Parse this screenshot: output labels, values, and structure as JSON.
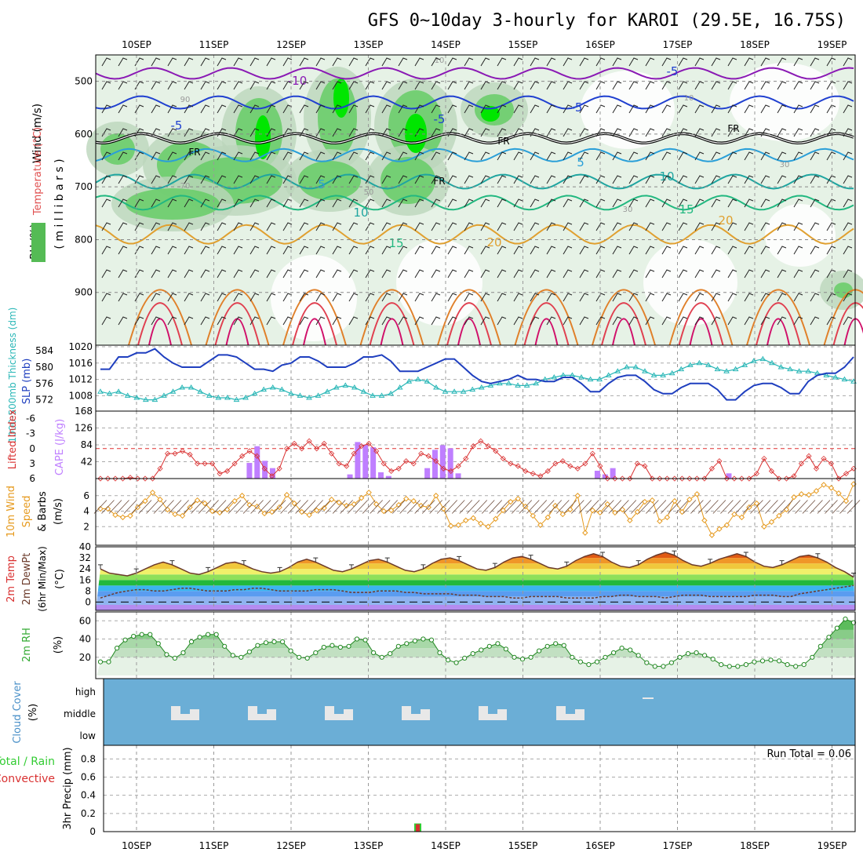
{
  "title": "GFS 0~10day 3-hourly for KAROI (29.5E, 16.75S)",
  "dates": [
    "10SEP",
    "11SEP",
    "12SEP",
    "13SEP",
    "14SEP",
    "15SEP",
    "16SEP",
    "17SEP",
    "18SEP",
    "19SEP"
  ],
  "colors": {
    "rh_green": "#33cc33",
    "rh_light": "#e6f2e6",
    "slp": "#1f3fbf",
    "thickness": "#2ab7b7",
    "cape": "#bf7fff",
    "lifted_index": "#d93030",
    "wind_speed": "#e69a1e",
    "cloud_bg": "#6baed6",
    "cloud_bar": "#e8e8e8",
    "rain": "#d93030",
    "total": "#33cc33"
  },
  "chart_data": [
    {
      "panel": "upper-air",
      "type": "heatmap",
      "ylabel_parts": [
        "RH (%)",
        "Temperature (°C)",
        "Wind (m/s)"
      ],
      "ylabel2": "( m i l l i b a r s )",
      "yticks": [
        500,
        600,
        700,
        800,
        900
      ],
      "ylim": [
        1000,
        450
      ],
      "isotherm_labels": [
        "-10",
        "-5",
        "-5",
        "-5",
        "-5",
        "5",
        "5",
        "10",
        "10",
        "15",
        "15",
        "20",
        "20",
        "FR",
        "FR",
        "FR",
        "FR"
      ],
      "rh_labels": [
        "10",
        "10",
        "30",
        "30",
        "50",
        "70",
        "90"
      ]
    },
    {
      "panel": "slp-thickness",
      "type": "line",
      "ylabel_left": "1000-500mb Thickness (dm)",
      "ylabel_right": "SLP (mb)",
      "yticks_left": [
        572,
        576,
        580,
        584
      ],
      "yticks_right": [
        1008,
        1012,
        1016,
        1020
      ],
      "series": [
        {
          "name": "SLP (mb)",
          "values": [
            1014.5,
            1014.5,
            1017.5,
            1017.5,
            1018.5,
            1018.5,
            1019.5,
            1017.5,
            1016,
            1015,
            1015,
            1015,
            1016.5,
            1018,
            1018,
            1017.5,
            1016,
            1014.5,
            1014.5,
            1014,
            1015.5,
            1016,
            1017.5,
            1017.5,
            1016.5,
            1015,
            1015,
            1015,
            1016,
            1017.5,
            1017.5,
            1018,
            1016.5,
            1014,
            1014,
            1014,
            1015,
            1016,
            1017,
            1017,
            1015,
            1013,
            1011.5,
            1011,
            1011.5,
            1012,
            1013,
            1012,
            1012,
            1011.5,
            1011.5,
            1012.5,
            1012.5,
            1011,
            1009,
            1009,
            1011,
            1012.5,
            1013,
            1013,
            1011.5,
            1009.5,
            1008.5,
            1008.5,
            1010,
            1011,
            1011,
            1011,
            1009.5,
            1007,
            1007,
            1009,
            1010.5,
            1011,
            1011,
            1010,
            1008.5,
            1008.5,
            1011.5,
            1013,
            1013.5,
            1013.5,
            1015,
            1017.5
          ]
        },
        {
          "name": "1000-500mb Thickness (dm)",
          "values": [
            574,
            573.5,
            574,
            573,
            572.5,
            572,
            572,
            573,
            574,
            575,
            575,
            574,
            573,
            572.5,
            572.5,
            572,
            572.5,
            573.5,
            574.5,
            575,
            574.5,
            573.5,
            573,
            572.5,
            573,
            574,
            575,
            575.5,
            575,
            574,
            573,
            573,
            573.5,
            575,
            576.5,
            577,
            576.5,
            575,
            574,
            574,
            574,
            574.5,
            575,
            575.5,
            576,
            576,
            575.5,
            575.5,
            576,
            577,
            577.5,
            578,
            578,
            577.5,
            577,
            577,
            578,
            579,
            580,
            580,
            579,
            578,
            578,
            578.5,
            579.5,
            580.5,
            581,
            580.5,
            579.5,
            579,
            579.5,
            580.5,
            581.5,
            582,
            581,
            580,
            579.5,
            579,
            579,
            578.5,
            578,
            577.5,
            577,
            576.5
          ]
        }
      ]
    },
    {
      "panel": "cape-li",
      "type": "bar",
      "ylabel_left": "Lifted Index",
      "ylabel_right": "CAPE (J/kg)",
      "yticks_left": [
        "-6",
        "-3",
        "0",
        "3",
        "6"
      ],
      "yticks_right": [
        42,
        84,
        126,
        168
      ],
      "series": [
        {
          "name": "CAPE (J/kg)",
          "values": [
            0,
            0,
            0,
            0,
            0,
            0,
            0,
            0,
            0,
            0,
            0,
            30,
            62,
            34,
            20,
            0,
            0,
            0,
            0,
            0,
            0,
            0,
            0,
            0,
            8,
            70,
            65,
            60,
            12,
            5,
            0,
            0,
            0,
            0,
            20,
            55,
            64,
            58,
            10,
            0,
            0,
            0,
            0,
            0,
            0,
            0,
            0,
            0,
            0,
            0,
            0,
            0,
            0,
            0,
            0,
            0,
            15,
            8,
            20,
            0,
            0,
            0,
            0,
            0,
            0,
            0,
            0,
            0,
            0,
            0,
            0,
            0,
            0,
            10,
            0,
            0,
            0,
            0,
            0,
            0,
            0,
            0,
            0,
            0,
            0,
            0,
            0,
            0,
            0,
            0,
            0,
            0,
            0,
            0,
            0,
            0,
            0,
            0,
            0,
            0,
            0,
            0,
            0,
            0,
            0,
            0,
            0,
            0,
            0,
            0,
            0,
            0,
            0,
            0,
            0,
            0,
            0,
            0,
            0,
            0,
            0,
            0,
            0,
            0,
            0,
            0,
            0,
            0,
            0,
            0,
            0,
            0,
            0,
            0,
            0,
            0,
            0,
            0,
            0,
            0,
            0,
            0,
            0,
            0,
            0,
            0,
            0,
            0,
            0,
            0,
            0,
            0,
            0,
            0,
            0,
            0,
            0,
            0,
            0,
            0,
            0,
            0,
            0,
            0,
            0,
            0,
            0,
            0,
            0,
            0,
            0,
            0,
            0,
            0,
            0,
            0
          ]
        },
        {
          "name": "Lifted Index",
          "values": [
            6,
            6,
            6,
            6,
            5.8,
            6,
            6,
            6,
            4,
            1,
            1,
            0.5,
            1.2,
            3,
            3,
            3,
            5,
            4.5,
            3,
            1.5,
            0.5,
            1.5,
            4,
            5.5,
            4,
            0,
            -1,
            0,
            -1.5,
            0,
            -1,
            1,
            3,
            3.5,
            1,
            -0.5,
            -1,
            0.5,
            3,
            4.5,
            4,
            2.5,
            3,
            1,
            1.5,
            2.5,
            4,
            4.5,
            3.5,
            2,
            -0.5,
            -1.5,
            -0.5,
            0.5,
            2,
            3,
            3.5,
            4.5,
            5,
            5.5,
            4.5,
            3,
            2.5,
            3.5,
            4,
            3,
            1,
            3.5,
            6,
            6,
            6,
            6,
            3,
            3.5,
            6,
            6,
            6,
            6,
            6,
            6,
            6,
            6,
            4,
            2.5,
            6,
            6,
            6,
            6,
            5,
            2,
            4.5,
            6,
            6,
            5.5,
            3,
            1.5,
            4,
            2,
            3,
            6,
            5,
            4
          ]
        }
      ]
    },
    {
      "panel": "wind10m",
      "type": "line",
      "ylabel": "10m Wind Speed & Barbs (m/s)",
      "yticks": [
        2,
        4,
        6
      ],
      "series": [
        {
          "name": "10m Wind Speed",
          "values": [
            4.3,
            4.3,
            3.5,
            3.2,
            3.4,
            4.5,
            5.3,
            6.4,
            5.5,
            4.2,
            3.6,
            3.4,
            4.5,
            5.4,
            5.0,
            4.0,
            3.8,
            4.2,
            5.3,
            6.0,
            4.8,
            4.6,
            3.7,
            3.9,
            4.5,
            6.1,
            5.0,
            3.9,
            3.5,
            4.1,
            4.4,
            5.5,
            5.1,
            4.7,
            4.9,
            5.7,
            6.4,
            4.9,
            4.0,
            4.1,
            4.8,
            5.6,
            5.3,
            4.7,
            4.5,
            6.0,
            4.3,
            2.1,
            2.2,
            2.8,
            3.1,
            2.4,
            2.0,
            3.0,
            4.1,
            5.2,
            5.6,
            4.6,
            3.4,
            2.2,
            3.2,
            4.7,
            3.6,
            4.2,
            6.0,
            1.2,
            4.1,
            3.8,
            4.9,
            3.8,
            4.2,
            2.8,
            3.9,
            5.2,
            5.4,
            2.7,
            3.2,
            5.3,
            3.9,
            5.5,
            6.2,
            2.8,
            0.9,
            1.7,
            2.2,
            3.6,
            3.2,
            4.5,
            5.0,
            2.0,
            2.6,
            3.4,
            4.2,
            5.8,
            6.2,
            6.1,
            6.6,
            7.4,
            7.0,
            6.3,
            5.3,
            7.5
          ]
        }
      ]
    },
    {
      "panel": "temperature",
      "type": "area",
      "ylabel": "2m Temp 2m DewPt (6hr Min/Max) (°C)",
      "yticks": [
        0,
        8,
        16,
        24,
        32,
        40
      ],
      "series": [
        {
          "name": "2m Temp",
          "values": [
            24,
            21,
            20,
            19,
            21,
            24,
            27,
            29,
            27,
            24,
            21,
            20,
            22,
            25,
            28,
            29,
            27,
            24,
            22,
            21,
            22,
            25,
            29,
            31,
            29,
            26,
            23,
            22,
            24,
            27,
            30,
            31,
            29,
            26,
            23,
            22,
            24,
            28,
            31,
            32,
            30,
            27,
            24,
            23,
            25,
            29,
            32,
            33,
            31,
            28,
            25,
            24,
            26,
            30,
            33,
            35,
            33,
            29,
            26,
            25,
            27,
            31,
            34,
            36,
            34,
            30,
            27,
            26,
            28,
            31,
            33,
            35,
            33,
            29,
            26,
            25,
            27,
            30,
            33,
            34,
            32,
            29,
            25,
            22,
            18
          ]
        },
        {
          "name": "2m DewPt",
          "values": [
            3,
            5,
            7,
            8,
            9,
            9,
            8,
            8,
            9,
            10,
            10,
            9,
            8,
            8,
            8,
            9,
            9,
            10,
            10,
            9,
            8,
            8,
            8,
            8,
            9,
            9,
            9,
            8,
            7,
            7,
            7,
            8,
            8,
            8,
            7,
            7,
            6,
            6,
            6,
            6,
            5,
            5,
            5,
            4,
            4,
            4,
            3,
            3,
            4,
            4,
            4,
            4,
            3,
            3,
            3,
            3,
            4,
            4,
            5,
            5,
            4,
            4,
            4,
            3,
            4,
            5,
            5,
            5,
            4,
            4,
            4,
            4,
            4,
            5,
            5,
            5,
            4,
            4,
            6,
            7,
            8,
            9,
            10,
            11,
            12
          ]
        }
      ]
    },
    {
      "panel": "rh2m",
      "type": "area",
      "ylabel": "2m RH (%)",
      "yticks": [
        20,
        40,
        60
      ],
      "series": [
        {
          "name": "2m RH",
          "values": [
            15,
            15,
            30,
            39,
            43,
            45,
            45,
            35,
            23,
            19,
            25,
            37,
            42,
            45,
            45,
            32,
            22,
            20,
            26,
            33,
            36,
            37,
            37,
            27,
            20,
            19,
            25,
            31,
            33,
            31,
            32,
            40,
            39,
            25,
            20,
            24,
            32,
            35,
            38,
            40,
            39,
            25,
            17,
            14,
            19,
            24,
            28,
            32,
            35,
            29,
            20,
            18,
            20,
            27,
            32,
            35,
            33,
            20,
            15,
            12,
            15,
            20,
            25,
            30,
            28,
            22,
            14,
            10,
            10,
            14,
            20,
            24,
            25,
            22,
            18,
            12,
            10,
            10,
            12,
            15,
            16,
            17,
            16,
            12,
            10,
            12,
            20,
            32,
            42,
            52,
            62,
            58
          ]
        }
      ]
    },
    {
      "panel": "cloud",
      "type": "bar",
      "ylabel": "Cloud Cover (%)",
      "ytick_labels": [
        "high",
        "middle",
        "low"
      ]
    },
    {
      "panel": "precip",
      "type": "bar",
      "ylabel": "3hr Precip (mm)",
      "ylabel2_parts": [
        "Total / Rain",
        "Convective"
      ],
      "yticks": [
        "0",
        "0.2",
        "0.4",
        "0.6",
        "0.8"
      ],
      "run_total_label": "Run Total = 0.06",
      "series": [
        {
          "name": "Total",
          "values": [
            0.03
          ]
        },
        {
          "name": "Rain",
          "values": [
            0.03
          ]
        }
      ]
    }
  ]
}
